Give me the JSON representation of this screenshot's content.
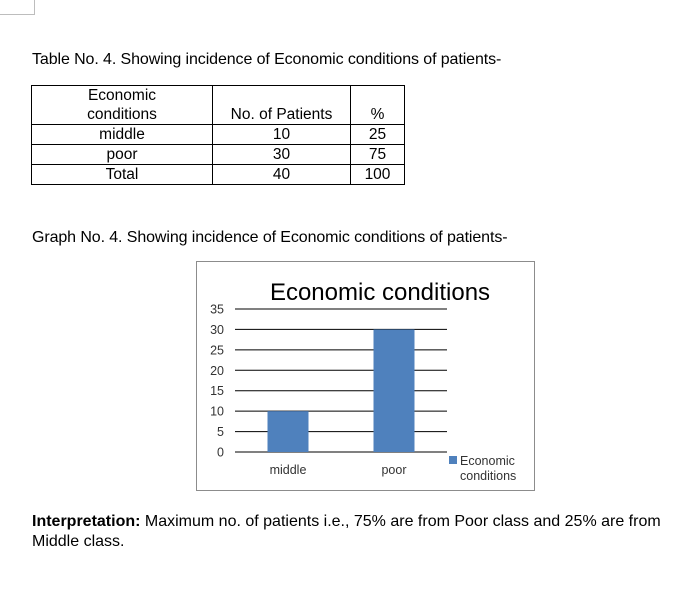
{
  "table_caption": "Table No. 4. Showing incidence of Economic conditions of patients-",
  "table": {
    "headers": [
      "Economic conditions",
      "No. of Patients",
      "%"
    ],
    "header_lines": [
      "Economic",
      "conditions"
    ],
    "rows": [
      {
        "label": "middle",
        "patients": "10",
        "percent": "25"
      },
      {
        "label": "poor",
        "patients": "30",
        "percent": "75"
      },
      {
        "label": "Total",
        "patients": "40",
        "percent": "100"
      }
    ]
  },
  "graph_caption": "Graph No. 4. Showing incidence of Economic conditions of patients-",
  "chart_data": {
    "type": "bar",
    "title": "Economic conditions",
    "categories": [
      "middle",
      "poor"
    ],
    "series": [
      {
        "name": "Economic conditions",
        "values": [
          10,
          30
        ]
      }
    ],
    "legend_lines": [
      "Economic",
      "conditions"
    ],
    "ylim": [
      0,
      35
    ],
    "yticks": [
      "0",
      "5",
      "10",
      "15",
      "20",
      "25",
      "30",
      "35"
    ],
    "grid": true,
    "legend_position": "right",
    "bar_color": "#4f81bd"
  },
  "interpretation": {
    "label": "Interpretation:",
    "text": " Maximum no. of patients i.e., 75% are from Poor class and 25% are from Middle class."
  }
}
